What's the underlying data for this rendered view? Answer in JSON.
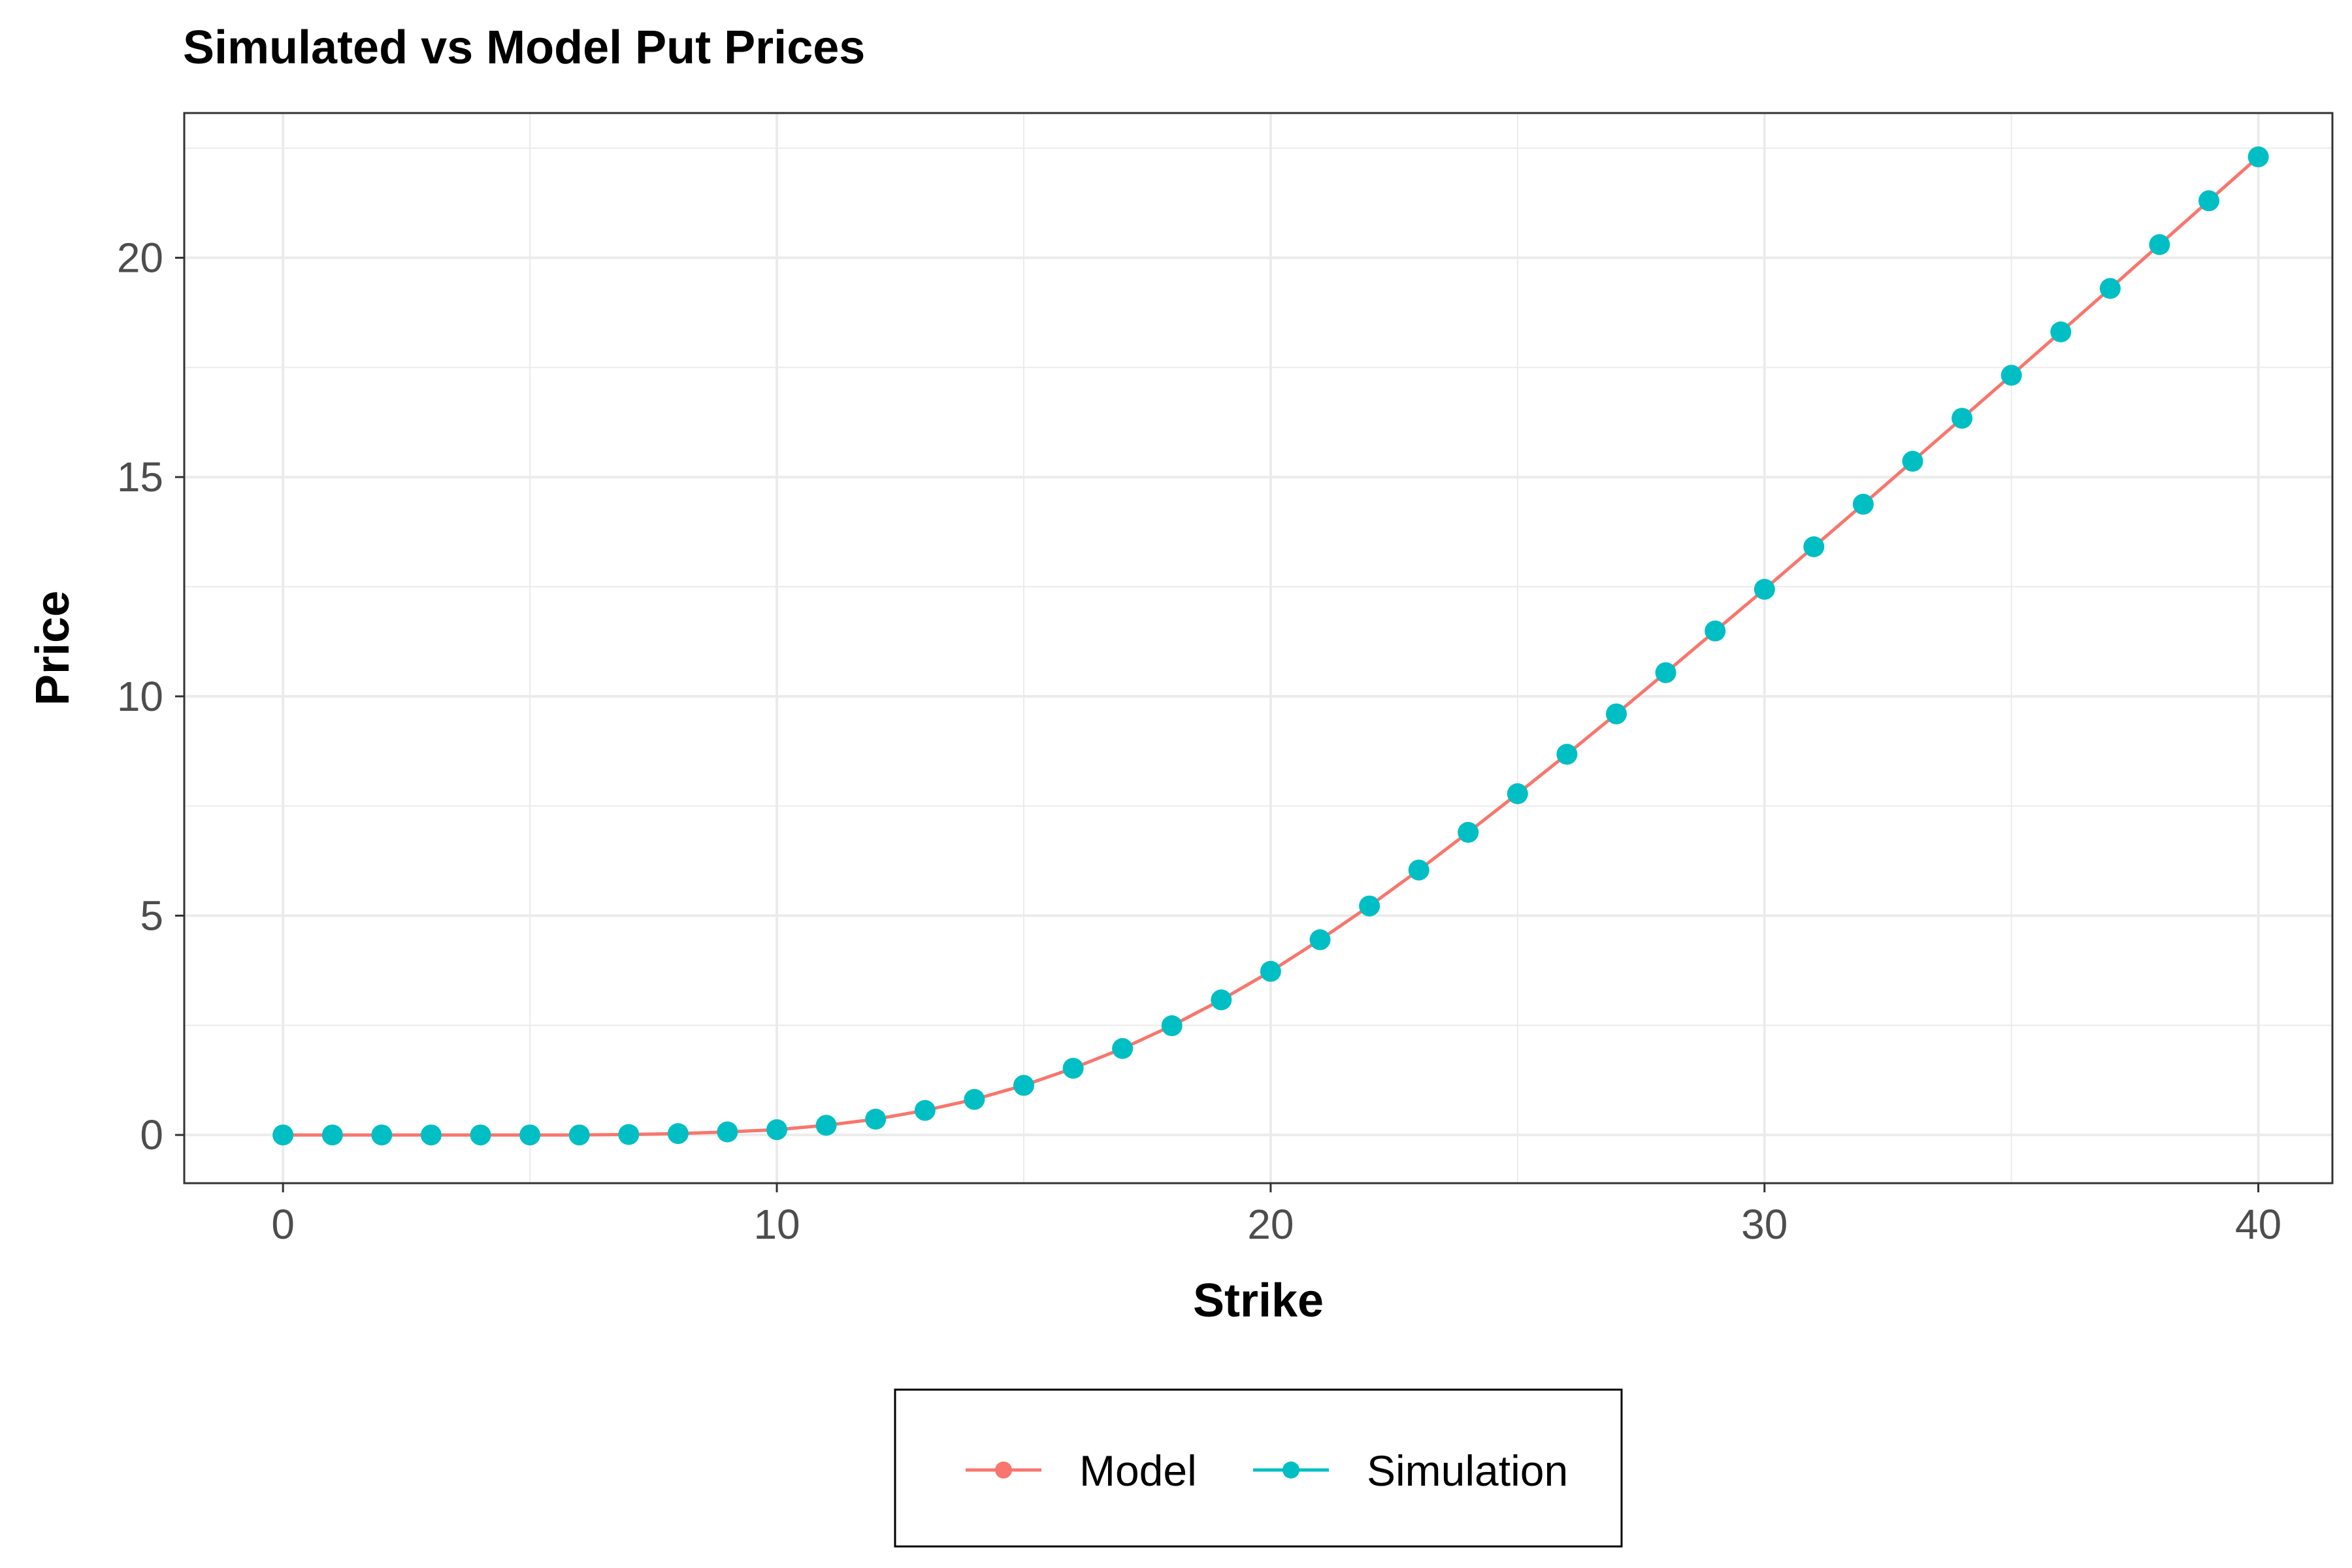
{
  "chart_data": {
    "type": "line",
    "title": "Simulated vs Model Put Prices",
    "xlabel": "Strike",
    "ylabel": "Price",
    "xlim": [
      -2,
      41.5
    ],
    "ylim": [
      -1.1,
      23.3
    ],
    "x_ticks": [
      0,
      10,
      20,
      30,
      40
    ],
    "y_ticks": [
      0,
      5,
      10,
      15,
      20
    ],
    "x_tick_labels": [
      "0",
      "10",
      "20",
      "30",
      "40"
    ],
    "y_tick_labels": [
      "0",
      "5",
      "10",
      "15",
      "20"
    ],
    "grid": true,
    "legend_position": "bottom",
    "x": [
      0,
      1,
      2,
      3,
      4,
      5,
      6,
      7,
      8,
      9,
      10,
      11,
      12,
      13,
      14,
      15,
      16,
      17,
      18,
      19,
      20,
      21,
      22,
      23,
      24,
      25,
      26,
      27,
      28,
      29,
      30,
      31,
      32,
      33,
      34,
      35,
      36,
      37,
      38,
      39,
      40
    ],
    "series": [
      {
        "name": "Model",
        "color": "#f8766d",
        "style": "line",
        "values": [
          0,
          0,
          0,
          0,
          0,
          0,
          0,
          0.01,
          0.03,
          0.07,
          0.12,
          0.22,
          0.36,
          0.56,
          0.81,
          1.13,
          1.52,
          1.97,
          2.49,
          3.08,
          3.73,
          4.45,
          5.22,
          6.04,
          6.9,
          7.78,
          8.68,
          9.6,
          10.54,
          11.49,
          12.44,
          13.41,
          14.38,
          15.36,
          16.34,
          17.32,
          18.31,
          19.3,
          20.3,
          21.3,
          22.3
        ]
      },
      {
        "name": "Simulation",
        "color": "#00bfc4",
        "style": "points",
        "values": [
          0,
          0,
          0,
          0,
          0,
          0,
          0,
          0.01,
          0.03,
          0.07,
          0.12,
          0.22,
          0.36,
          0.56,
          0.81,
          1.13,
          1.52,
          1.97,
          2.49,
          3.08,
          3.73,
          4.45,
          5.22,
          6.04,
          6.9,
          7.78,
          8.68,
          9.6,
          10.54,
          11.49,
          12.44,
          13.41,
          14.38,
          15.36,
          16.34,
          17.32,
          18.31,
          19.3,
          20.3,
          21.3,
          22.3
        ]
      }
    ]
  }
}
